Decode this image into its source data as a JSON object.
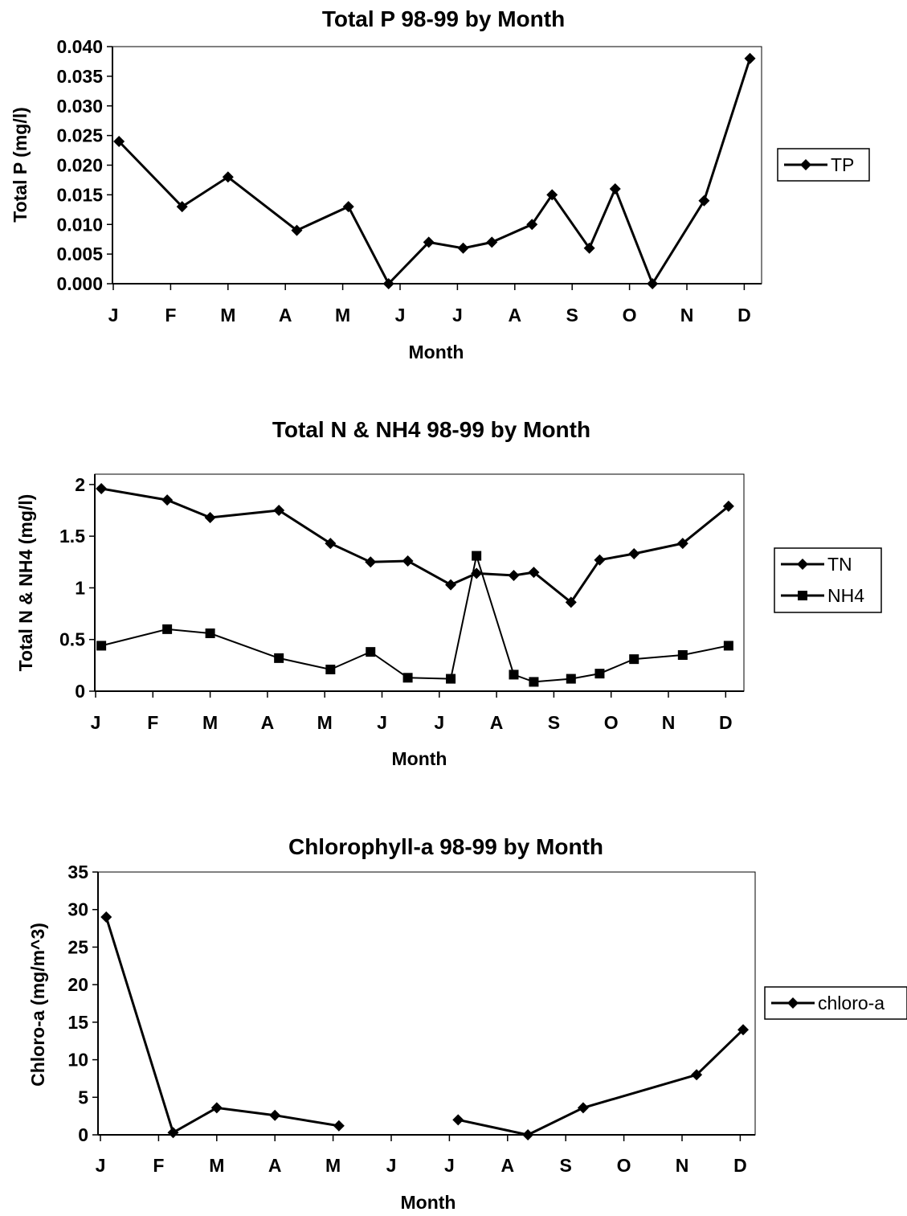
{
  "chart_data": [
    {
      "type": "line",
      "title": "Total P 98-99 by Month",
      "xlabel": "Month",
      "ylabel": "Total P (mg/l)",
      "categories": [
        "J",
        "F",
        "M",
        "A",
        "M",
        "J",
        "J",
        "A",
        "S",
        "O",
        "N",
        "D"
      ],
      "ylim": [
        0,
        0.04
      ],
      "yticks": [
        "0.000",
        "0.005",
        "0.010",
        "0.015",
        "0.020",
        "0.025",
        "0.030",
        "0.035",
        "0.040"
      ],
      "grid": false,
      "legend_position": "right",
      "series": [
        {
          "name": "TP",
          "marker": "diamond",
          "points": [
            {
              "x": 0.1,
              "y": 0.024
            },
            {
              "x": 1.2,
              "y": 0.013
            },
            {
              "x": 2.0,
              "y": 0.018
            },
            {
              "x": 3.2,
              "y": 0.009
            },
            {
              "x": 4.1,
              "y": 0.013
            },
            {
              "x": 4.8,
              "y": 0.0
            },
            {
              "x": 5.5,
              "y": 0.007
            },
            {
              "x": 6.1,
              "y": 0.006
            },
            {
              "x": 6.6,
              "y": 0.007
            },
            {
              "x": 7.3,
              "y": 0.01
            },
            {
              "x": 7.65,
              "y": 0.015
            },
            {
              "x": 8.3,
              "y": 0.006
            },
            {
              "x": 8.75,
              "y": 0.016
            },
            {
              "x": 9.4,
              "y": 0.0
            },
            {
              "x": 10.3,
              "y": 0.014
            },
            {
              "x": 11.1,
              "y": 0.038
            }
          ]
        }
      ]
    },
    {
      "type": "line",
      "title": "Total N & NH4 98-99 by Month",
      "xlabel": "Month",
      "ylabel": "Total N & NH4 (mg/l)",
      "categories": [
        "J",
        "F",
        "M",
        "A",
        "M",
        "J",
        "J",
        "A",
        "S",
        "O",
        "N",
        "D"
      ],
      "ylim": [
        0,
        2.1
      ],
      "yticks": [
        "0",
        "0.5",
        "1",
        "1.5",
        "2"
      ],
      "grid": false,
      "legend_position": "right",
      "series": [
        {
          "name": "TN",
          "marker": "diamond",
          "points": [
            {
              "x": 0.1,
              "y": 1.96
            },
            {
              "x": 1.25,
              "y": 1.85
            },
            {
              "x": 2.0,
              "y": 1.68
            },
            {
              "x": 3.2,
              "y": 1.75
            },
            {
              "x": 4.1,
              "y": 1.43
            },
            {
              "x": 4.8,
              "y": 1.25
            },
            {
              "x": 5.45,
              "y": 1.26
            },
            {
              "x": 6.2,
              "y": 1.03
            },
            {
              "x": 6.65,
              "y": 1.14
            },
            {
              "x": 7.3,
              "y": 1.12
            },
            {
              "x": 7.65,
              "y": 1.15
            },
            {
              "x": 8.3,
              "y": 0.86
            },
            {
              "x": 8.8,
              "y": 1.27
            },
            {
              "x": 9.4,
              "y": 1.33
            },
            {
              "x": 10.25,
              "y": 1.43
            },
            {
              "x": 11.05,
              "y": 1.79
            }
          ]
        },
        {
          "name": "NH4",
          "marker": "square",
          "points": [
            {
              "x": 0.1,
              "y": 0.44
            },
            {
              "x": 1.25,
              "y": 0.6
            },
            {
              "x": 2.0,
              "y": 0.56
            },
            {
              "x": 3.2,
              "y": 0.32
            },
            {
              "x": 4.1,
              "y": 0.21
            },
            {
              "x": 4.8,
              "y": 0.38
            },
            {
              "x": 5.45,
              "y": 0.13
            },
            {
              "x": 6.2,
              "y": 0.12
            },
            {
              "x": 6.65,
              "y": 1.31
            },
            {
              "x": 7.3,
              "y": 0.16
            },
            {
              "x": 7.65,
              "y": 0.09
            },
            {
              "x": 8.3,
              "y": 0.12
            },
            {
              "x": 8.8,
              "y": 0.17
            },
            {
              "x": 9.4,
              "y": 0.31
            },
            {
              "x": 10.25,
              "y": 0.35
            },
            {
              "x": 11.05,
              "y": 0.44
            }
          ]
        }
      ]
    },
    {
      "type": "line",
      "title": "Chlorophyll-a 98-99 by Month",
      "xlabel": "Month",
      "ylabel": "Chloro-a (mg/m^3)",
      "categories": [
        "J",
        "F",
        "M",
        "A",
        "M",
        "J",
        "J",
        "A",
        "S",
        "O",
        "N",
        "D"
      ],
      "ylim": [
        0,
        35
      ],
      "yticks": [
        "0",
        "5",
        "10",
        "15",
        "20",
        "25",
        "30",
        "35"
      ],
      "grid": false,
      "legend_position": "right",
      "series": [
        {
          "name": "chloro-a",
          "marker": "diamond",
          "segments": [
            [
              {
                "x": 0.1,
                "y": 29
              },
              {
                "x": 1.25,
                "y": 0.3
              },
              {
                "x": 2.0,
                "y": 3.6
              },
              {
                "x": 3.0,
                "y": 2.6
              },
              {
                "x": 4.1,
                "y": 1.2
              }
            ],
            [
              {
                "x": 6.15,
                "y": 2.0
              },
              {
                "x": 7.35,
                "y": 0.0
              },
              {
                "x": 8.3,
                "y": 3.6
              },
              {
                "x": 10.25,
                "y": 8.0
              },
              {
                "x": 11.05,
                "y": 14.0
              }
            ]
          ]
        }
      ]
    }
  ]
}
